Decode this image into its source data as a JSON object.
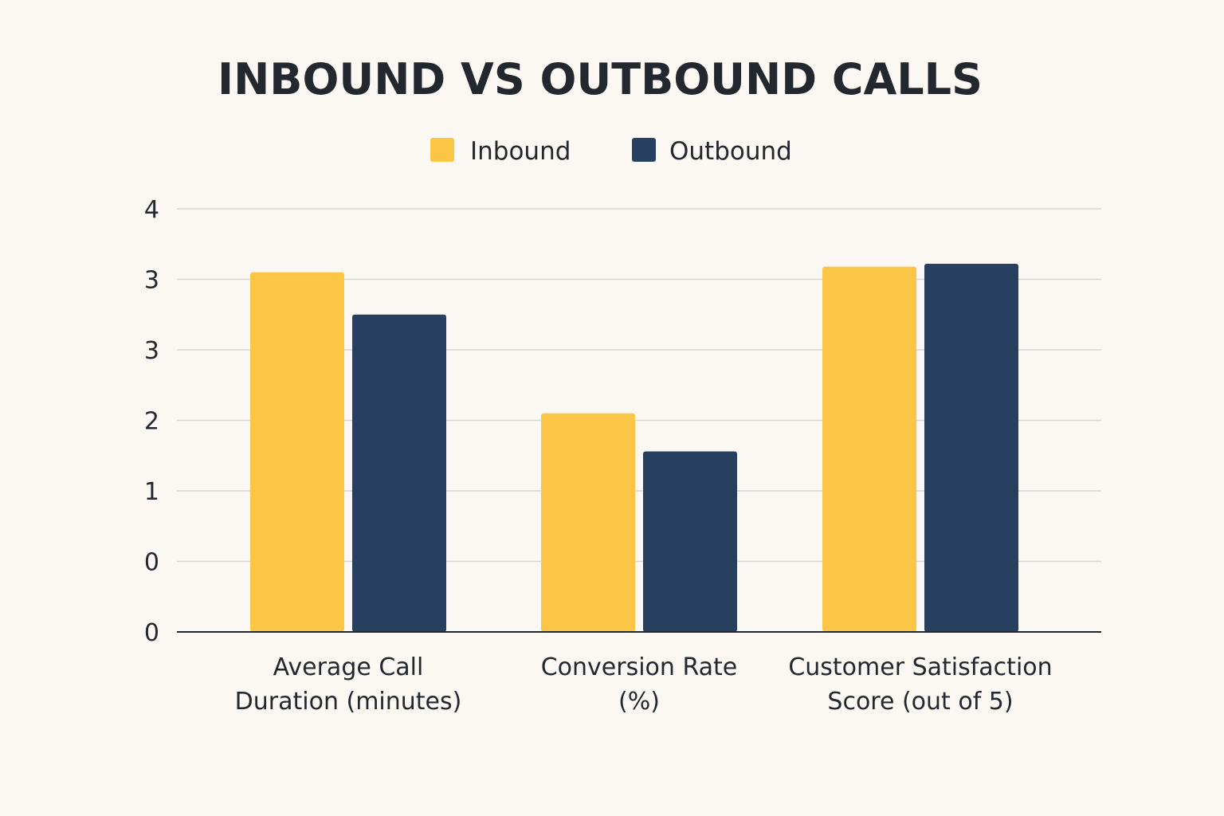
{
  "chart_data": {
    "type": "bar",
    "title": "INBOUND VS OUTBOUND CALLS",
    "categories": [
      [
        "Average Call",
        "Duration (minutes)"
      ],
      [
        "Conversion Rate",
        "(%)"
      ],
      [
        "Customer Satisfaction",
        "Score (out of 5)"
      ]
    ],
    "series": [
      {
        "name": "Inbound",
        "color": "#fbc546",
        "values": [
          2.55,
          1.55,
          2.59
        ]
      },
      {
        "name": "Outbound",
        "color": "#28405f",
        "values": [
          2.25,
          1.28,
          2.61
        ]
      }
    ],
    "yticks": [
      "0",
      "0",
      "1",
      "2",
      "3",
      "3",
      "4"
    ],
    "ylim": [
      0,
      3
    ],
    "grid": true,
    "legend": "top-center"
  }
}
